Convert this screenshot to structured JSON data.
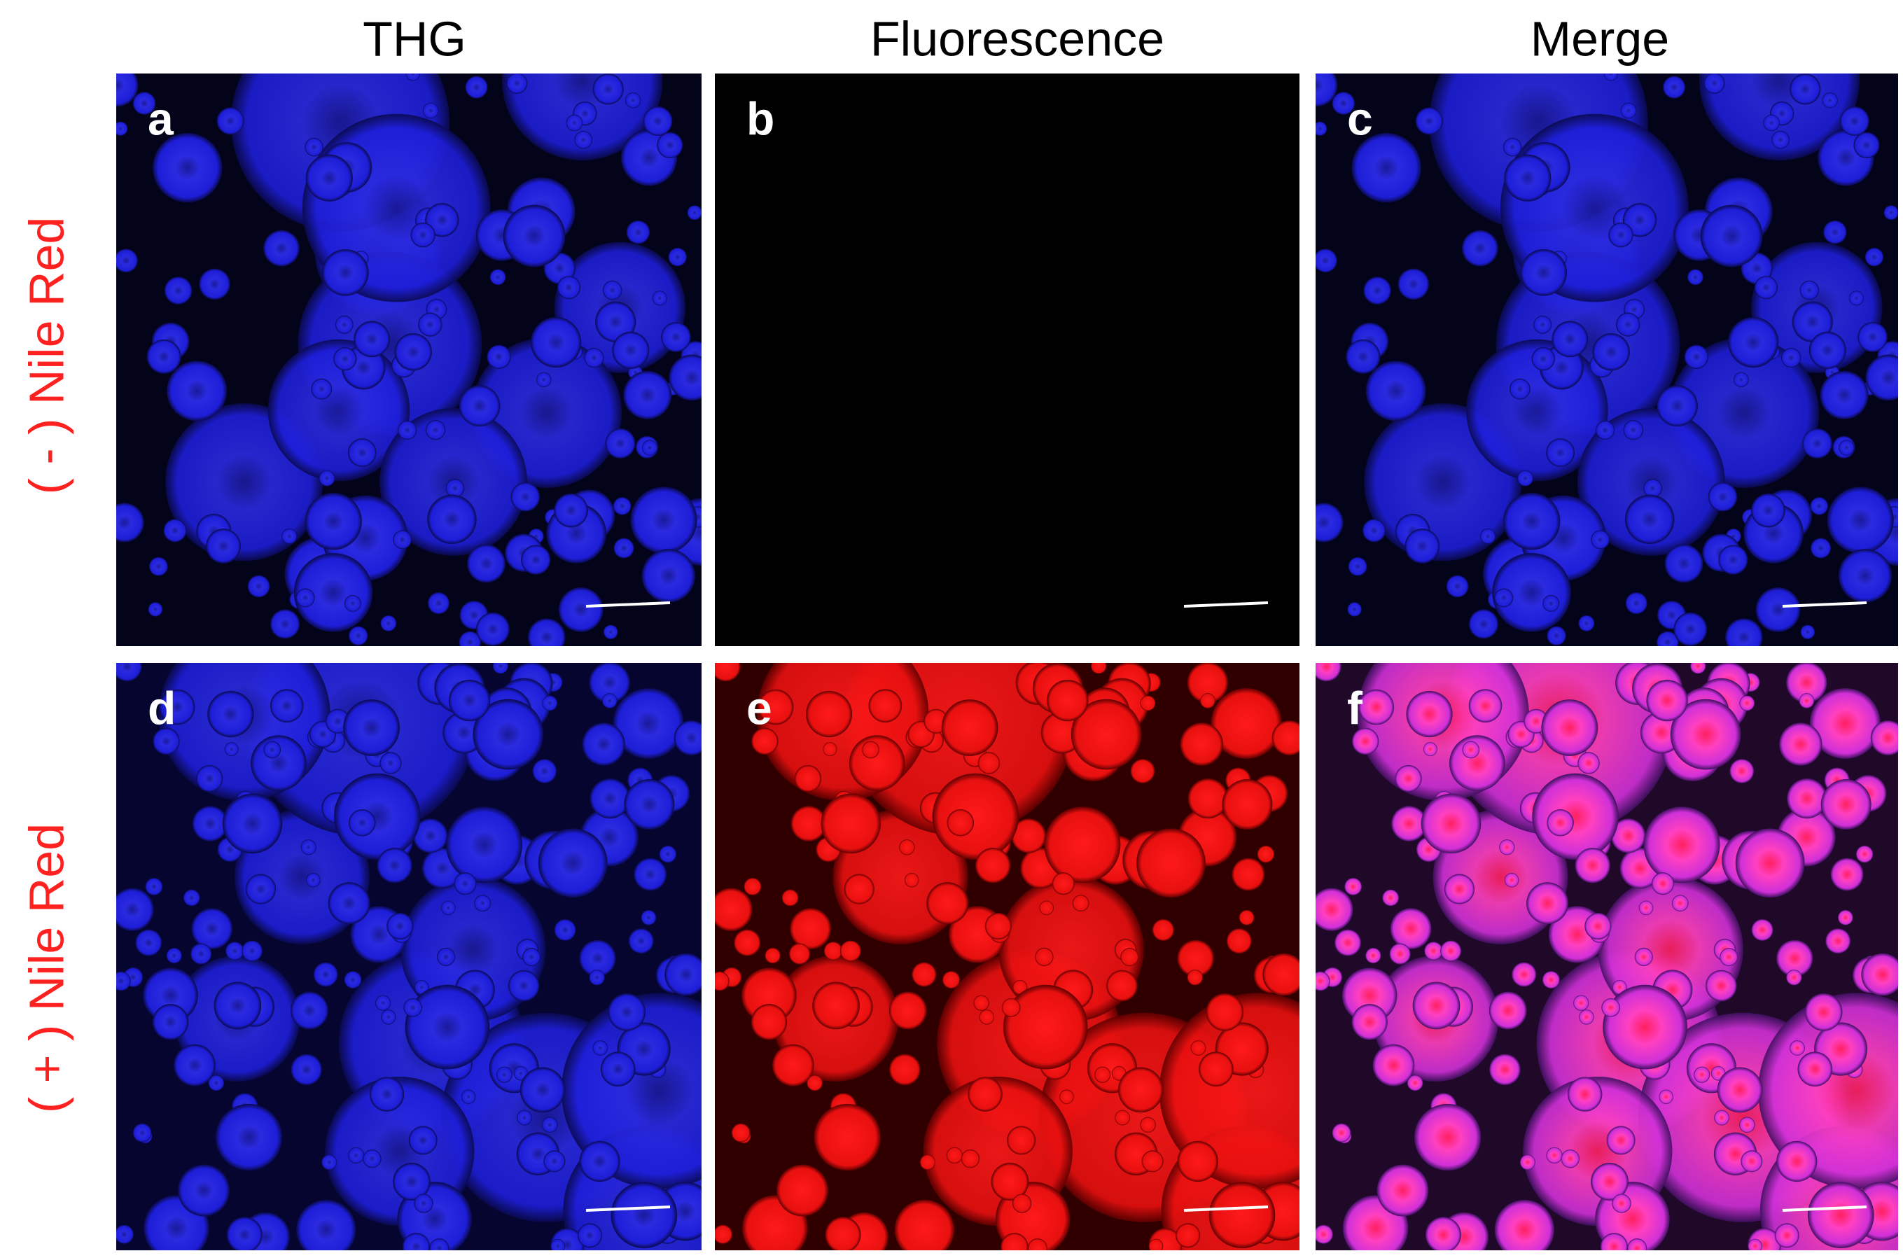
{
  "columns": [
    "THG",
    "Fluorescence",
    "Merge"
  ],
  "rows": [
    "( - ) Nile Red",
    "( + ) Nile Red"
  ],
  "panels": [
    "a",
    "b",
    "c",
    "d",
    "e",
    "f"
  ]
}
